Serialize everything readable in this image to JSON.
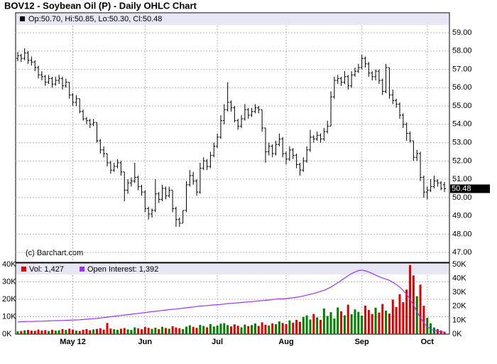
{
  "chart_data": [
    {
      "type": "ohlc",
      "title": "BOV12 - Soybean Oil (P) - Daily OHLC Chart",
      "legend_text": "Op:50.70, Hi:50.85, Lo:50.30, Cl:50.48",
      "watermark": "(c) Barchart.com",
      "color": "#000000",
      "grid": true,
      "ylim": [
        46.5,
        60.09
      ],
      "yticks": [
        {
          "value": 47,
          "label": "47.00"
        },
        {
          "value": 48,
          "label": "48.00"
        },
        {
          "value": 49,
          "label": "49.00"
        },
        {
          "value": 50,
          "label": "50.00"
        },
        {
          "value": 51,
          "label": "51.00"
        },
        {
          "value": 52,
          "label": "52.00"
        },
        {
          "value": 53,
          "label": "53.00"
        },
        {
          "value": 54,
          "label": "54.00"
        },
        {
          "value": 55,
          "label": "55.00"
        },
        {
          "value": 56,
          "label": "56.00"
        },
        {
          "value": 57,
          "label": "57.00"
        },
        {
          "value": 58,
          "label": "58.00"
        },
        {
          "value": 59,
          "label": "59.00"
        }
      ],
      "last_label": {
        "value": 50.48,
        "label": "50.48"
      },
      "ohlc": [
        [
          57.6,
          57.95,
          57.45,
          57.75
        ],
        [
          57.75,
          57.85,
          57.4,
          57.6
        ],
        [
          57.6,
          58.15,
          57.5,
          57.9
        ],
        [
          57.9,
          58.0,
          57.3,
          57.5
        ],
        [
          57.5,
          57.7,
          57.2,
          57.4
        ],
        [
          57.4,
          57.5,
          56.9,
          57.1
        ],
        [
          57.1,
          57.2,
          56.5,
          56.7
        ],
        [
          56.7,
          56.9,
          56.4,
          56.6
        ],
        [
          56.6,
          56.7,
          56.1,
          56.3
        ],
        [
          56.3,
          56.7,
          56.2,
          56.5
        ],
        [
          56.5,
          56.6,
          56.0,
          56.2
        ],
        [
          56.2,
          56.6,
          56.1,
          56.4
        ],
        [
          56.4,
          56.7,
          56.2,
          56.5
        ],
        [
          56.5,
          56.6,
          55.9,
          56.1
        ],
        [
          56.1,
          56.5,
          56.0,
          56.3
        ],
        [
          56.3,
          56.3,
          55.4,
          55.6
        ],
        [
          55.6,
          55.7,
          55.0,
          55.2
        ],
        [
          55.2,
          55.6,
          55.0,
          55.4
        ],
        [
          55.4,
          55.4,
          54.6,
          54.7
        ],
        [
          54.7,
          54.8,
          54.2,
          54.3
        ],
        [
          54.3,
          54.4,
          54.0,
          54.2
        ],
        [
          54.2,
          54.3,
          53.8,
          54.0
        ],
        [
          54.0,
          54.3,
          53.9,
          54.1
        ],
        [
          54.1,
          54.1,
          53.0,
          53.1
        ],
        [
          53.1,
          53.2,
          52.4,
          52.6
        ],
        [
          52.6,
          52.8,
          52.2,
          52.4
        ],
        [
          52.4,
          52.4,
          51.7,
          51.9
        ],
        [
          51.9,
          52.0,
          51.3,
          51.5
        ],
        [
          51.5,
          51.9,
          51.4,
          51.7
        ],
        [
          51.7,
          52.1,
          51.6,
          51.9
        ],
        [
          51.9,
          52.0,
          51.2,
          51.4
        ],
        [
          51.4,
          51.4,
          49.8,
          50.4
        ],
        [
          50.4,
          51.0,
          50.2,
          50.8
        ],
        [
          50.8,
          51.1,
          50.6,
          50.9
        ],
        [
          50.9,
          51.9,
          50.8,
          51.1
        ],
        [
          51.1,
          51.2,
          50.4,
          50.6
        ],
        [
          50.6,
          50.7,
          50.1,
          50.3
        ],
        [
          50.3,
          50.4,
          49.2,
          49.4
        ],
        [
          49.4,
          49.5,
          48.8,
          49.1
        ],
        [
          49.1,
          49.4,
          48.9,
          49.3
        ],
        [
          49.3,
          51.0,
          49.2,
          50.2
        ],
        [
          50.2,
          50.3,
          49.7,
          49.9
        ],
        [
          49.9,
          50.7,
          49.8,
          50.5
        ],
        [
          50.5,
          50.6,
          49.9,
          50.1
        ],
        [
          50.1,
          50.6,
          50.0,
          50.4
        ],
        [
          50.4,
          50.4,
          49.2,
          49.4
        ],
        [
          49.4,
          49.5,
          48.4,
          48.8
        ],
        [
          48.8,
          48.9,
          48.4,
          48.6
        ],
        [
          48.6,
          49.3,
          48.6,
          49.3
        ],
        [
          49.3,
          50.9,
          49.2,
          50.7
        ],
        [
          50.7,
          51.5,
          50.6,
          51.2
        ],
        [
          51.2,
          51.4,
          50.7,
          50.9
        ],
        [
          50.9,
          51.0,
          50.1,
          50.3
        ],
        [
          50.3,
          51.9,
          50.2,
          51.6
        ],
        [
          51.6,
          52.2,
          51.5,
          52.0
        ],
        [
          52.0,
          52.1,
          51.5,
          51.7
        ],
        [
          51.7,
          52.5,
          51.6,
          52.3
        ],
        [
          52.3,
          53.0,
          52.2,
          52.8
        ],
        [
          52.8,
          53.5,
          52.7,
          53.3
        ],
        [
          53.3,
          54.5,
          53.2,
          54.2
        ],
        [
          54.2,
          55.1,
          54.0,
          54.8
        ],
        [
          54.8,
          56.3,
          54.7,
          55.2
        ],
        [
          55.2,
          55.3,
          54.7,
          54.9
        ],
        [
          54.9,
          55.0,
          54.1,
          54.2
        ],
        [
          54.2,
          54.3,
          53.7,
          53.9
        ],
        [
          53.9,
          54.5,
          53.8,
          54.3
        ],
        [
          54.3,
          55.1,
          54.2,
          54.8
        ],
        [
          54.8,
          54.9,
          54.3,
          54.5
        ],
        [
          54.5,
          54.9,
          54.4,
          54.7
        ],
        [
          54.7,
          55.1,
          54.6,
          54.9
        ],
        [
          54.9,
          55.0,
          54.6,
          54.8
        ],
        [
          54.8,
          54.8,
          53.6,
          53.8
        ],
        [
          53.8,
          53.8,
          51.9,
          52.5
        ],
        [
          52.5,
          53.0,
          52.3,
          52.8
        ],
        [
          52.8,
          52.9,
          52.2,
          52.4
        ],
        [
          52.4,
          53.1,
          52.3,
          52.9
        ],
        [
          52.9,
          53.5,
          52.8,
          53.2
        ],
        [
          53.2,
          53.3,
          52.2,
          52.4
        ],
        [
          52.4,
          52.5,
          51.8,
          52.1
        ],
        [
          52.1,
          52.8,
          52.0,
          52.6
        ],
        [
          52.6,
          52.7,
          52.1,
          52.3
        ],
        [
          52.3,
          52.4,
          51.6,
          51.8
        ],
        [
          51.8,
          51.9,
          51.2,
          51.5
        ],
        [
          51.5,
          52.2,
          51.4,
          52.0
        ],
        [
          52.0,
          52.8,
          51.9,
          52.6
        ],
        [
          52.6,
          53.7,
          52.5,
          53.3
        ],
        [
          53.3,
          53.4,
          53.0,
          53.2
        ],
        [
          53.2,
          53.6,
          53.1,
          53.4
        ],
        [
          53.4,
          53.5,
          53.0,
          53.2
        ],
        [
          53.2,
          53.8,
          53.1,
          53.6
        ],
        [
          53.6,
          54.2,
          53.5,
          53.9
        ],
        [
          53.9,
          55.8,
          53.9,
          55.5
        ],
        [
          55.5,
          56.6,
          55.4,
          56.4
        ],
        [
          56.4,
          56.7,
          56.2,
          56.5
        ],
        [
          56.5,
          56.6,
          56.1,
          56.3
        ],
        [
          56.3,
          56.9,
          56.2,
          56.6
        ],
        [
          56.6,
          56.7,
          55.9,
          56.1
        ],
        [
          56.1,
          56.9,
          56.0,
          56.7
        ],
        [
          56.7,
          57.1,
          56.6,
          56.9
        ],
        [
          56.9,
          57.3,
          56.8,
          57.1
        ],
        [
          57.1,
          57.8,
          57.0,
          57.6
        ],
        [
          57.6,
          57.7,
          57.1,
          57.3
        ],
        [
          57.3,
          57.4,
          56.6,
          56.8
        ],
        [
          56.8,
          56.9,
          56.4,
          56.6
        ],
        [
          56.6,
          57.0,
          56.4,
          56.9
        ],
        [
          56.9,
          57.0,
          56.2,
          56.4
        ],
        [
          56.4,
          56.5,
          55.6,
          55.8
        ],
        [
          55.8,
          57.3,
          55.7,
          57.1
        ],
        [
          57.1,
          57.1,
          55.4,
          55.6
        ],
        [
          55.6,
          55.9,
          55.1,
          55.3
        ],
        [
          55.3,
          55.4,
          54.9,
          55.1
        ],
        [
          55.1,
          55.2,
          54.3,
          54.5
        ],
        [
          54.5,
          54.6,
          53.8,
          54.0
        ],
        [
          54.0,
          54.1,
          53.1,
          53.5
        ],
        [
          53.5,
          53.6,
          53.0,
          53.1
        ],
        [
          53.1,
          53.1,
          52.0,
          52.2
        ],
        [
          52.2,
          52.6,
          52.0,
          52.4
        ],
        [
          52.4,
          52.5,
          50.9,
          51.1
        ],
        [
          51.1,
          51.2,
          50.0,
          50.3
        ],
        [
          50.3,
          50.6,
          49.9,
          50.4
        ],
        [
          50.4,
          51.0,
          50.3,
          50.6
        ],
        [
          50.6,
          51.2,
          50.5,
          50.9
        ],
        [
          50.9,
          51.0,
          50.6,
          50.8
        ],
        [
          50.8,
          50.9,
          50.4,
          50.5
        ],
        [
          50.7,
          50.85,
          50.3,
          50.48
        ]
      ]
    },
    {
      "type": "volume",
      "grid": true,
      "up_color": "#008000",
      "categories": [
        null,
        null,
        null,
        null,
        null,
        null,
        null,
        null,
        null,
        null,
        null,
        null,
        null,
        null,
        null,
        null,
        "May 12",
        null,
        null,
        null,
        null,
        null,
        null,
        null,
        null,
        null,
        null,
        null,
        null,
        null,
        null,
        null,
        null,
        null,
        null,
        null,
        null,
        "Jun",
        null,
        null,
        null,
        null,
        null,
        null,
        null,
        null,
        null,
        null,
        null,
        null,
        null,
        null,
        null,
        null,
        null,
        null,
        null,
        null,
        "Jul",
        null,
        null,
        null,
        null,
        null,
        null,
        null,
        null,
        null,
        null,
        null,
        null,
        null,
        null,
        null,
        null,
        null,
        null,
        null,
        "Aug",
        null,
        null,
        null,
        null,
        null,
        null,
        null,
        null,
        null,
        null,
        null,
        null,
        null,
        null,
        null,
        null,
        null,
        null,
        null,
        null,
        null,
        "Sep",
        null,
        null,
        null,
        null,
        null,
        null,
        null,
        null,
        null,
        null,
        null,
        null,
        null,
        null,
        null,
        null,
        null,
        null,
        "Oct",
        null,
        null,
        null,
        null,
        null
      ],
      "ylim": [
        0,
        40000
      ],
      "yticks": [
        {
          "value": 0,
          "label": "0K"
        },
        {
          "value": 10000,
          "label": "10K"
        },
        {
          "value": 20000,
          "label": "20K"
        },
        {
          "value": 30000,
          "label": "30K"
        },
        {
          "value": 40000,
          "label": "40K"
        }
      ],
      "y2lim": [
        0,
        50000
      ],
      "y2ticks": [
        {
          "value": 0,
          "label": "0K"
        },
        {
          "value": 10000,
          "label": "10K"
        },
        {
          "value": 20000,
          "label": "20K"
        },
        {
          "value": 30000,
          "label": "30K"
        },
        {
          "value": 40000,
          "label": "40K"
        },
        {
          "value": 50000,
          "label": "50K"
        }
      ],
      "series": [
        {
          "name": "Vol: 1,427",
          "color": "#e00000",
          "values": [
            1600,
            1800,
            2200,
            2400,
            2000,
            1900,
            2600,
            2100,
            2300,
            1800,
            2500,
            2000,
            2200,
            2900,
            2400,
            3100,
            2600,
            2000,
            1800,
            2500,
            2900,
            2200,
            2700,
            3000,
            3400,
            2600,
            6400,
            3200,
            2800,
            2500,
            3100,
            3500,
            2700,
            2400,
            3900,
            3300,
            2800,
            4100,
            3600,
            3000,
            3700,
            2900,
            4200,
            3500,
            3100,
            4600,
            3800,
            3400,
            2900,
            4300,
            5100,
            4200,
            3600,
            5300,
            4700,
            3900,
            5800,
            4400,
            4900,
            6000,
            6300,
            5200,
            4400,
            5600,
            4800,
            3900,
            5500,
            4600,
            5200,
            6100,
            4700,
            6800,
            5400,
            4900,
            6200,
            5700,
            7300,
            6400,
            5800,
            7900,
            6600,
            8200,
            7100,
            9800,
            10800,
            8400,
            11600,
            9600,
            8200,
            14700,
            10400,
            12600,
            9000,
            15300,
            13100,
            10800,
            16900,
            11400,
            14200,
            12800,
            10600,
            16400,
            13900,
            11600,
            15200,
            12400,
            17300,
            13500,
            11800,
            19800,
            15600,
            22900,
            18400,
            25600,
            39700,
            33700,
            21800,
            28400,
            16300,
            9400,
            6200,
            3800,
            2900,
            2100,
            1427
          ]
        },
        {
          "name": "Open Interest: 1,392",
          "color": "#9933ff",
          "axis": "y2",
          "values": [
            8800,
            8900,
            9000,
            9100,
            9100,
            9200,
            9300,
            9300,
            9400,
            9500,
            9600,
            9700,
            9700,
            9800,
            9900,
            10000,
            10100,
            10200,
            10300,
            10500,
            10700,
            10900,
            11100,
            11300,
            11600,
            11900,
            12200,
            12500,
            12800,
            13100,
            13400,
            13700,
            14000,
            14300,
            14600,
            14900,
            15200,
            15500,
            15800,
            16100,
            16400,
            16700,
            17000,
            17300,
            17600,
            17800,
            18000,
            18300,
            18600,
            18900,
            19200,
            19500,
            19800,
            20100,
            20300,
            20500,
            20700,
            20900,
            21100,
            21300,
            21600,
            21900,
            22100,
            22300,
            22500,
            22700,
            22900,
            23100,
            23300,
            23600,
            23800,
            24100,
            24300,
            24500,
            24800,
            25100,
            25400,
            25300,
            25500,
            25800,
            26100,
            26500,
            26900,
            27400,
            28000,
            28600,
            29200,
            29900,
            30700,
            31500,
            32500,
            33800,
            35300,
            36900,
            38500,
            40200,
            41900,
            43400,
            44600,
            45600,
            46000,
            45400,
            44600,
            43500,
            42400,
            41300,
            40200,
            39500,
            38600,
            37200,
            35600,
            33700,
            31400,
            28600,
            25200,
            20800,
            16200,
            11900,
            8100,
            5300,
            3600,
            2700,
            2100,
            1700,
            1392
          ]
        }
      ]
    }
  ]
}
